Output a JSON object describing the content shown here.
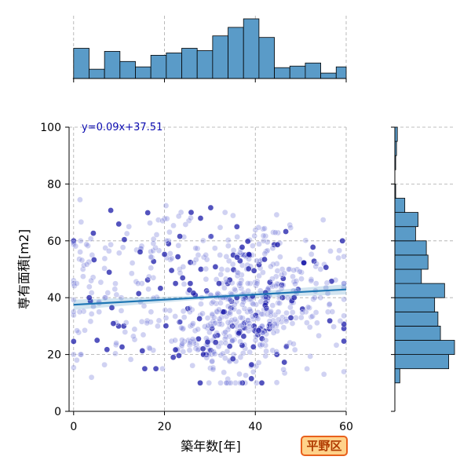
{
  "chart_data": {
    "type": "scatter",
    "xlabel": "築年数[年]",
    "ylabel": "専有面積[m2]",
    "xlim": [
      -1,
      60
    ],
    "ylim": [
      0,
      100
    ],
    "xticks": [
      0,
      20,
      40,
      60
    ],
    "yticks": [
      0,
      20,
      40,
      60,
      80,
      100
    ],
    "grid": true,
    "regression": {
      "label": "y=0.09x+37.51",
      "slope": 0.09,
      "intercept": 37.51
    },
    "badge": "平野区",
    "marginal_x": {
      "bin_edges": [
        0,
        3.4,
        6.8,
        10.2,
        13.6,
        17,
        20.4,
        23.8,
        27.2,
        30.6,
        34,
        37.4,
        40.8,
        44.2,
        47.6,
        51,
        54.4,
        57.8,
        60
      ],
      "counts": [
        39,
        12,
        35,
        22,
        15,
        30,
        33,
        39,
        36,
        55,
        66,
        77,
        53,
        14,
        16,
        20,
        7,
        15
      ]
    },
    "marginal_y": {
      "bin_edges": [
        10,
        15,
        20,
        25,
        30,
        35,
        40,
        45,
        50,
        55,
        60,
        65,
        70,
        75,
        80,
        85,
        90,
        95,
        100
      ],
      "counts": [
        6,
        65,
        72,
        55,
        52,
        48,
        60,
        32,
        40,
        38,
        25,
        28,
        12,
        1,
        0,
        1,
        2,
        3
      ]
    },
    "clusters": [
      {
        "cx": 36,
        "cy": 30,
        "sx": 6,
        "sy": 10,
        "n": 240
      },
      {
        "cx": 38,
        "cy": 50,
        "sx": 6,
        "sy": 10,
        "n": 150
      },
      {
        "cx": 28,
        "cy": 25,
        "sx": 7,
        "sy": 6,
        "n": 70
      },
      {
        "cx": 10,
        "cy": 40,
        "sx": 7,
        "sy": 13,
        "n": 90
      },
      {
        "cx": 50,
        "cy": 40,
        "sx": 6,
        "sy": 12,
        "n": 110
      },
      {
        "cx": 24,
        "cy": 58,
        "sx": 8,
        "sy": 8,
        "n": 70
      },
      {
        "cx": 2,
        "cy": 48,
        "sx": 1.5,
        "sy": 12,
        "n": 25
      }
    ]
  }
}
